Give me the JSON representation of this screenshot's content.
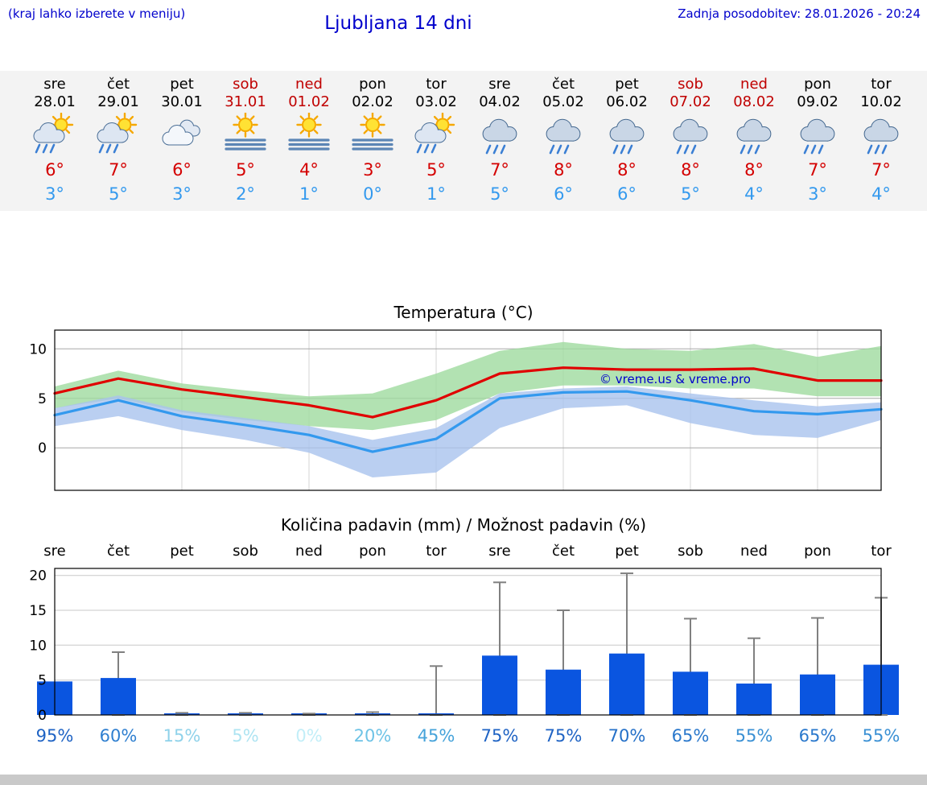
{
  "header": {
    "note": "(kraj lahko izberete v meniju)",
    "title": "Ljubljana 14 dni",
    "updated": "Zadnja posodobitev: 28.01.2026 - 20:24"
  },
  "watermark": "© vreme.us & vreme.pro",
  "forecast": {
    "days": [
      {
        "day": "sre",
        "date": "28.01",
        "icon": "sun-cloud-rain",
        "tmax": "6°",
        "tmin": "3°",
        "weekend": false
      },
      {
        "day": "čet",
        "date": "29.01",
        "icon": "sun-cloud-rain",
        "tmax": "7°",
        "tmin": "5°",
        "weekend": false
      },
      {
        "day": "pet",
        "date": "30.01",
        "icon": "cloudy",
        "tmax": "6°",
        "tmin": "3°",
        "weekend": false
      },
      {
        "day": "sob",
        "date": "31.01",
        "icon": "sun-fog",
        "tmax": "5°",
        "tmin": "2°",
        "weekend": true
      },
      {
        "day": "ned",
        "date": "01.02",
        "icon": "sun-fog",
        "tmax": "4°",
        "tmin": "1°",
        "weekend": true
      },
      {
        "day": "pon",
        "date": "02.02",
        "icon": "sun-fog",
        "tmax": "3°",
        "tmin": "0°",
        "weekend": false
      },
      {
        "day": "tor",
        "date": "03.02",
        "icon": "sun-cloud-rain",
        "tmax": "5°",
        "tmin": "1°",
        "weekend": false
      },
      {
        "day": "sre",
        "date": "04.02",
        "icon": "cloud-rain",
        "tmax": "7°",
        "tmin": "5°",
        "weekend": false
      },
      {
        "day": "čet",
        "date": "05.02",
        "icon": "cloud-rain",
        "tmax": "8°",
        "tmin": "6°",
        "weekend": false
      },
      {
        "day": "pet",
        "date": "06.02",
        "icon": "cloud-rain",
        "tmax": "8°",
        "tmin": "6°",
        "weekend": false
      },
      {
        "day": "sob",
        "date": "07.02",
        "icon": "cloud-rain",
        "tmax": "8°",
        "tmin": "5°",
        "weekend": true
      },
      {
        "day": "ned",
        "date": "08.02",
        "icon": "cloud-rain",
        "tmax": "8°",
        "tmin": "4°",
        "weekend": true
      },
      {
        "day": "pon",
        "date": "09.02",
        "icon": "cloud-rain",
        "tmax": "7°",
        "tmin": "3°",
        "weekend": false
      },
      {
        "day": "tor",
        "date": "10.02",
        "icon": "cloud-rain",
        "tmax": "7°",
        "tmin": "4°",
        "weekend": false
      }
    ]
  },
  "chart_data": [
    {
      "type": "line",
      "title": "Temperatura (°C)",
      "x": [
        "28.01",
        "29.01",
        "30.01",
        "31.01",
        "01.02",
        "02.02",
        "03.02",
        "04.02",
        "05.02",
        "06.02",
        "07.02",
        "08.02",
        "09.02",
        "10.02"
      ],
      "series": [
        {
          "name": "max temperature",
          "color": "#e00000",
          "values": [
            5.5,
            7.0,
            5.9,
            5.1,
            4.3,
            3.1,
            4.8,
            7.5,
            8.1,
            7.9,
            7.9,
            8.0,
            6.8,
            6.8
          ]
        },
        {
          "name": "min temperature",
          "color": "#3399ee",
          "values": [
            3.3,
            4.8,
            3.2,
            2.3,
            1.3,
            -0.4,
            0.9,
            5.0,
            5.6,
            5.7,
            4.8,
            3.7,
            3.4,
            3.9
          ]
        }
      ],
      "bands": [
        {
          "name": "max-range",
          "color": "#9fdb9f",
          "upper": [
            6.2,
            7.8,
            6.5,
            5.8,
            5.2,
            5.5,
            7.5,
            9.8,
            10.7,
            10.0,
            9.8,
            10.5,
            9.2,
            10.3
          ],
          "lower": [
            4.0,
            5.0,
            3.6,
            2.8,
            2.2,
            1.8,
            2.8,
            5.5,
            6.3,
            6.3,
            6.0,
            6.0,
            5.2,
            5.2
          ]
        },
        {
          "name": "min-range",
          "color": "#a9c3ee",
          "upper": [
            4.0,
            5.3,
            3.8,
            3.0,
            2.2,
            0.8,
            2.0,
            5.5,
            6.0,
            6.2,
            5.5,
            4.8,
            4.2,
            4.6
          ],
          "lower": [
            2.2,
            3.2,
            1.8,
            0.8,
            -0.5,
            -3.0,
            -2.5,
            2.0,
            4.0,
            4.3,
            2.5,
            1.3,
            1.0,
            2.8
          ]
        }
      ],
      "ylim": [
        -4.3,
        11.9
      ],
      "yticks": [
        0,
        5,
        10
      ],
      "grid": true,
      "legend_position": "none"
    },
    {
      "type": "bar",
      "title": "Količina padavin (mm) / Možnost padavin (%)",
      "categories": [
        "sre",
        "čet",
        "pet",
        "sob",
        "ned",
        "pon",
        "tor",
        "sre",
        "čet",
        "pet",
        "sob",
        "ned",
        "pon",
        "tor"
      ],
      "values": [
        4.8,
        5.3,
        0.1,
        0.1,
        0.1,
        0.1,
        0.2,
        8.5,
        6.5,
        8.8,
        6.2,
        4.5,
        5.8,
        7.2
      ],
      "whisker_max": [
        4.8,
        9.0,
        0.3,
        0.3,
        0.2,
        0.4,
        7.0,
        19.0,
        15.0,
        20.3,
        13.8,
        11.0,
        13.9,
        16.8
      ],
      "bar_color": "#0a55e0",
      "whisker_color": "#808080",
      "ylim": [
        0,
        21
      ],
      "yticks": [
        0,
        5,
        10,
        15,
        20
      ],
      "grid": true,
      "probabilities": [
        {
          "value": "95%",
          "color": "#1f63c4"
        },
        {
          "value": "60%",
          "color": "#2f7fd0"
        },
        {
          "value": "15%",
          "color": "#8fd2ea"
        },
        {
          "value": "5%",
          "color": "#aee4f2"
        },
        {
          "value": "0%",
          "color": "#c2eef8"
        },
        {
          "value": "20%",
          "color": "#6ec3e6"
        },
        {
          "value": "45%",
          "color": "#46a3da"
        },
        {
          "value": "75%",
          "color": "#1f63c4"
        },
        {
          "value": "75%",
          "color": "#1f63c4"
        },
        {
          "value": "70%",
          "color": "#2470c8"
        },
        {
          "value": "65%",
          "color": "#2a78cc"
        },
        {
          "value": "55%",
          "color": "#3a90d4"
        },
        {
          "value": "65%",
          "color": "#2a78cc"
        },
        {
          "value": "55%",
          "color": "#3a90d4"
        }
      ]
    }
  ]
}
